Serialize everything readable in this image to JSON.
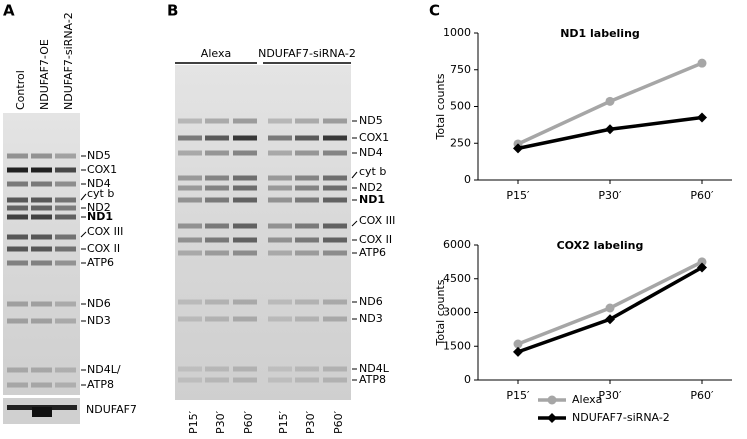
{
  "panel_a": {
    "letter": "A",
    "lanes": [
      "Control",
      "NDUFAF7-OE",
      "NDUFAF7-siRNA-2"
    ],
    "bands": [
      "ND5",
      "COX1",
      "ND4",
      "cyt b",
      "ND2",
      "ND1",
      "COX III",
      "COX II",
      "ATP6",
      "ND6",
      "ND3",
      "ND4L/",
      "ATP8"
    ],
    "blot_label": "NDUFAF7"
  },
  "panel_b": {
    "letter": "B",
    "groups": [
      "Alexa",
      "NDUFAF7-siRNA-2"
    ],
    "lanes": [
      "P15′",
      "P30′",
      "P60′",
      "P15′",
      "P30′",
      "P60′"
    ],
    "bands": [
      "ND5",
      "COX1",
      "ND4",
      "cyt b",
      "ND2",
      "ND1",
      "COX III",
      "COX II",
      "ATP6",
      "ND6",
      "ND3",
      "ND4L",
      "ATP8"
    ]
  },
  "panel_c": {
    "letter": "C"
  },
  "chart_data": [
    {
      "type": "line",
      "title": "ND1 labeling",
      "y_label": "Total counts",
      "categories": [
        "P15′",
        "P30′",
        "P60′"
      ],
      "ylim": [
        0,
        1000
      ],
      "yticks": [
        0,
        250,
        500,
        750,
        1000
      ],
      "series": [
        {
          "color": "#a6a6a6",
          "marker": "circle",
          "values": [
            245,
            535,
            795
          ]
        },
        {
          "color": "#000000",
          "marker": "diamond",
          "values": [
            215,
            345,
            425
          ]
        }
      ]
    },
    {
      "type": "line",
      "title": "COX2 labeling",
      "y_label": "Total counts",
      "categories": [
        "P15′",
        "P30′",
        "P60′"
      ],
      "ylim": [
        0,
        6000
      ],
      "yticks": [
        0,
        1500,
        3000,
        4500,
        6000
      ],
      "series": [
        {
          "name": "Alexa",
          "color": "#a6a6a6",
          "marker": "circle",
          "values": [
            1600,
            3200,
            5250
          ]
        },
        {
          "name": "NDUFAF7-siRNA-2",
          "color": "#000000",
          "marker": "diamond",
          "values": [
            1250,
            2700,
            5000
          ]
        }
      ],
      "legend": "bottom"
    }
  ]
}
